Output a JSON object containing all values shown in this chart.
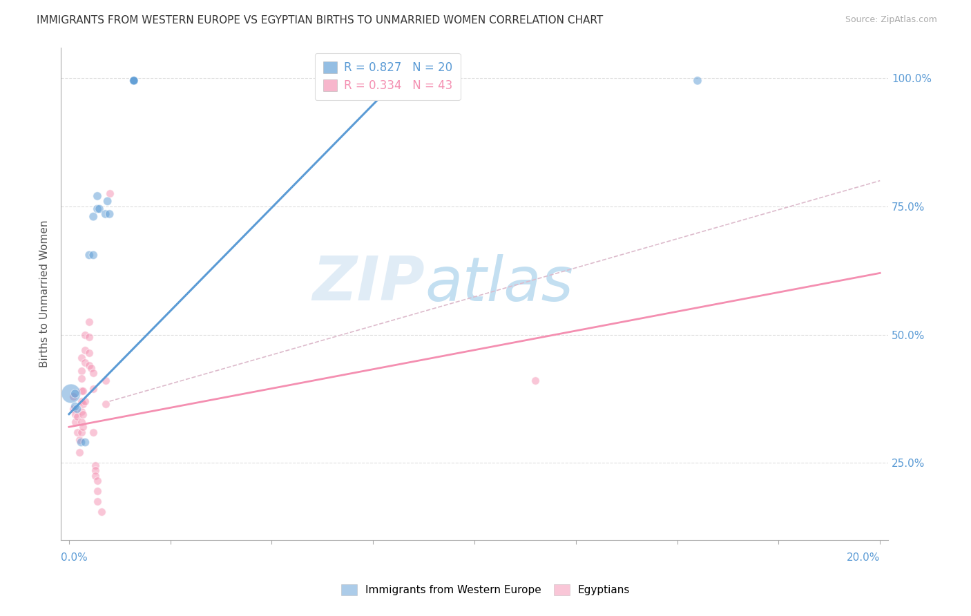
{
  "title": "IMMIGRANTS FROM WESTERN EUROPE VS EGYPTIAN BIRTHS TO UNMARRIED WOMEN CORRELATION CHART",
  "source": "Source: ZipAtlas.com",
  "ylabel": "Births to Unmarried Women",
  "R_blue": 0.827,
  "N_blue": 20,
  "R_pink": 0.334,
  "N_pink": 43,
  "blue_color": "#5B9BD5",
  "pink_color": "#F48FB1",
  "watermark_zip": "ZIP",
  "watermark_atlas": "atlas",
  "xlim": [
    0.0,
    0.2
  ],
  "ylim": [
    0.1,
    1.06
  ],
  "yticks": [
    0.25,
    0.5,
    0.75,
    1.0
  ],
  "ytick_labels": [
    "25.0%",
    "50.0%",
    "75.0%",
    "100.0%"
  ],
  "blue_points": [
    [
      0.0005,
      0.385
    ],
    [
      0.0015,
      0.385
    ],
    [
      0.0015,
      0.36
    ],
    [
      0.002,
      0.355
    ],
    [
      0.003,
      0.29
    ],
    [
      0.004,
      0.29
    ],
    [
      0.005,
      0.655
    ],
    [
      0.006,
      0.73
    ],
    [
      0.006,
      0.655
    ],
    [
      0.007,
      0.745
    ],
    [
      0.007,
      0.77
    ],
    [
      0.0075,
      0.745
    ],
    [
      0.009,
      0.735
    ],
    [
      0.0095,
      0.76
    ],
    [
      0.01,
      0.735
    ],
    [
      0.016,
      0.995
    ],
    [
      0.016,
      0.995
    ],
    [
      0.016,
      0.995
    ],
    [
      0.016,
      0.995
    ],
    [
      0.155,
      0.995
    ]
  ],
  "blue_sizes": [
    400,
    80,
    80,
    80,
    80,
    80,
    80,
    80,
    80,
    80,
    80,
    80,
    80,
    80,
    80,
    80,
    80,
    80,
    80,
    80
  ],
  "pink_points": [
    [
      0.001,
      0.355
    ],
    [
      0.001,
      0.38
    ],
    [
      0.0015,
      0.345
    ],
    [
      0.0015,
      0.33
    ],
    [
      0.002,
      0.34
    ],
    [
      0.002,
      0.31
    ],
    [
      0.0025,
      0.295
    ],
    [
      0.0025,
      0.27
    ],
    [
      0.003,
      0.455
    ],
    [
      0.003,
      0.43
    ],
    [
      0.003,
      0.415
    ],
    [
      0.003,
      0.39
    ],
    [
      0.003,
      0.37
    ],
    [
      0.003,
      0.35
    ],
    [
      0.003,
      0.33
    ],
    [
      0.003,
      0.31
    ],
    [
      0.0035,
      0.39
    ],
    [
      0.0035,
      0.365
    ],
    [
      0.0035,
      0.345
    ],
    [
      0.0035,
      0.32
    ],
    [
      0.004,
      0.5
    ],
    [
      0.004,
      0.47
    ],
    [
      0.004,
      0.445
    ],
    [
      0.004,
      0.37
    ],
    [
      0.005,
      0.525
    ],
    [
      0.005,
      0.495
    ],
    [
      0.005,
      0.465
    ],
    [
      0.005,
      0.44
    ],
    [
      0.0055,
      0.435
    ],
    [
      0.006,
      0.425
    ],
    [
      0.006,
      0.395
    ],
    [
      0.006,
      0.31
    ],
    [
      0.0065,
      0.245
    ],
    [
      0.0065,
      0.235
    ],
    [
      0.0065,
      0.225
    ],
    [
      0.007,
      0.215
    ],
    [
      0.007,
      0.195
    ],
    [
      0.007,
      0.175
    ],
    [
      0.008,
      0.155
    ],
    [
      0.009,
      0.41
    ],
    [
      0.009,
      0.365
    ],
    [
      0.115,
      0.41
    ],
    [
      0.01,
      0.775
    ]
  ],
  "blue_line_x": [
    0.0,
    0.082
  ],
  "blue_line_y": [
    0.345,
    1.005
  ],
  "pink_line_x": [
    0.0,
    0.2
  ],
  "pink_line_y": [
    0.32,
    0.62
  ],
  "diag_line_x": [
    0.01,
    0.2
  ],
  "diag_line_y": [
    0.37,
    0.8
  ]
}
